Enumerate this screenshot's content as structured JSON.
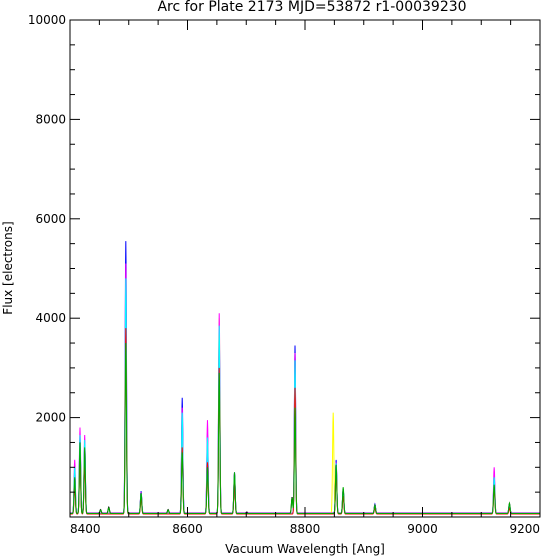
{
  "chart_data": {
    "type": "line",
    "title": "Arc for Plate 2173  MJD=53872  r1-00039230",
    "xlabel": "Vacuum Wavelength [Ang]",
    "ylabel": "Flux [electrons]",
    "xlim": [
      8400,
      9200
    ],
    "ylim": [
      0,
      10000
    ],
    "x_ticks": [
      8400,
      8600,
      8800,
      9000,
      9200
    ],
    "y_ticks": [
      2000,
      4000,
      6000,
      8000,
      10000
    ],
    "y_tick_labels": [
      "2000",
      "4000",
      "6000",
      "8000",
      "10000"
    ],
    "x_tick_labels": [
      "8400",
      "8600",
      "8800",
      "9000",
      "9200"
    ],
    "grid": false,
    "series": [
      {
        "color": "#000000",
        "baseline": 80,
        "peaks": [
          [
            8408,
            900
          ],
          [
            8417,
            1550
          ],
          [
            8425,
            1450
          ],
          [
            8452,
            150
          ],
          [
            8466,
            200
          ],
          [
            8495,
            4500
          ],
          [
            8521,
            500
          ],
          [
            8567,
            150
          ],
          [
            8591,
            2000
          ],
          [
            8634,
            1500
          ],
          [
            8654,
            3500
          ],
          [
            8680,
            850
          ],
          [
            8701,
            100
          ],
          [
            8778,
            400
          ],
          [
            8783,
            3000
          ],
          [
            8853,
            1100
          ],
          [
            8865,
            550
          ],
          [
            8919,
            250
          ],
          [
            9122,
            750
          ],
          [
            9148,
            250
          ]
        ]
      },
      {
        "color": "#ffff00",
        "baseline": 70,
        "peaks": [
          [
            8408,
            850
          ],
          [
            8417,
            1400
          ],
          [
            8425,
            1300
          ],
          [
            8495,
            4200
          ],
          [
            8521,
            450
          ],
          [
            8591,
            1700
          ],
          [
            8634,
            1300
          ],
          [
            8654,
            4000
          ],
          [
            8680,
            800
          ],
          [
            8783,
            3200
          ],
          [
            8848,
            2100
          ],
          [
            8853,
            1000
          ],
          [
            8865,
            500
          ],
          [
            8919,
            220
          ],
          [
            9122,
            700
          ],
          [
            9148,
            230
          ]
        ]
      },
      {
        "color": "#0000ff",
        "baseline": 75,
        "peaks": [
          [
            8408,
            950
          ],
          [
            8417,
            1600
          ],
          [
            8425,
            1500
          ],
          [
            8495,
            5550
          ],
          [
            8521,
            520
          ],
          [
            8591,
            2400
          ],
          [
            8634,
            1700
          ],
          [
            8654,
            3700
          ],
          [
            8680,
            900
          ],
          [
            8783,
            3450
          ],
          [
            8853,
            1150
          ],
          [
            8865,
            560
          ],
          [
            8919,
            260
          ],
          [
            9122,
            850
          ],
          [
            9148,
            260
          ]
        ]
      },
      {
        "color": "#ff00ff",
        "baseline": 75,
        "peaks": [
          [
            8408,
            1150
          ],
          [
            8417,
            1800
          ],
          [
            8425,
            1650
          ],
          [
            8495,
            5100
          ],
          [
            8521,
            500
          ],
          [
            8591,
            2200
          ],
          [
            8634,
            1950
          ],
          [
            8654,
            4100
          ],
          [
            8680,
            880
          ],
          [
            8783,
            3300
          ],
          [
            8853,
            1100
          ],
          [
            8865,
            540
          ],
          [
            8919,
            240
          ],
          [
            9122,
            1000
          ],
          [
            9148,
            270
          ]
        ]
      },
      {
        "color": "#00ffff",
        "baseline": 70,
        "peaks": [
          [
            8408,
            1000
          ],
          [
            8417,
            1650
          ],
          [
            8425,
            1550
          ],
          [
            8495,
            4800
          ],
          [
            8521,
            480
          ],
          [
            8591,
            2100
          ],
          [
            8634,
            1600
          ],
          [
            8654,
            3850
          ],
          [
            8680,
            860
          ],
          [
            8783,
            3150
          ],
          [
            8853,
            1080
          ],
          [
            8865,
            530
          ],
          [
            8919,
            230
          ],
          [
            9122,
            800
          ],
          [
            9148,
            250
          ]
        ]
      },
      {
        "color": "#ff0000",
        "baseline": 60,
        "peaks": [
          [
            8408,
            600
          ],
          [
            8417,
            1200
          ],
          [
            8425,
            1100
          ],
          [
            8495,
            3800
          ],
          [
            8521,
            380
          ],
          [
            8591,
            1400
          ],
          [
            8634,
            1100
          ],
          [
            8654,
            3000
          ],
          [
            8680,
            700
          ],
          [
            8783,
            2600
          ],
          [
            8853,
            900
          ],
          [
            8865,
            420
          ],
          [
            8919,
            180
          ],
          [
            9122,
            600
          ],
          [
            9148,
            180
          ]
        ]
      },
      {
        "color": "#00aa00",
        "baseline": 70,
        "peaks": [
          [
            8408,
            800
          ],
          [
            8417,
            1500
          ],
          [
            8425,
            1400
          ],
          [
            8452,
            140
          ],
          [
            8466,
            180
          ],
          [
            8495,
            3500
          ],
          [
            8521,
            480
          ],
          [
            8567,
            140
          ],
          [
            8591,
            1300
          ],
          [
            8634,
            1000
          ],
          [
            8654,
            2900
          ],
          [
            8680,
            900
          ],
          [
            8778,
            380
          ],
          [
            8783,
            2200
          ],
          [
            8853,
            1050
          ],
          [
            8865,
            600
          ],
          [
            8919,
            240
          ],
          [
            9122,
            650
          ],
          [
            9148,
            280
          ]
        ]
      }
    ]
  }
}
